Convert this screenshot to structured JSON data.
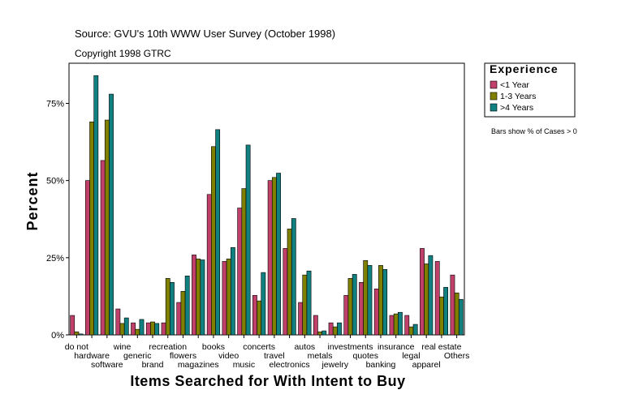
{
  "chart_data": {
    "type": "bar",
    "source": "Source: GVU's 10th WWW User Survey (October 1998)",
    "copyright": "Copyright 1998 GTRC",
    "y_label": "Percent",
    "x_label": "Items Searched for With Intent to Buy",
    "legend_title": "Experience",
    "note": "Bars show % of Cases > 0",
    "categories": [
      "do not",
      "hardware",
      "software",
      "wine",
      "generic",
      "brand",
      "recreation",
      "flowers",
      "magazines",
      "books",
      "video",
      "music",
      "concerts",
      "travel",
      "electronics",
      "autos",
      "metals",
      "jewelry",
      "investments",
      "quotes",
      "banking",
      "insurance",
      "legal",
      "apparel",
      "real estate",
      "Others"
    ],
    "series": [
      {
        "name": "<1 Year",
        "color": "#c0406a",
        "values": [
          6.3,
          50,
          56.5,
          8.4,
          3.9,
          3.9,
          3.9,
          10.5,
          25.9,
          45.5,
          23.8,
          41.1,
          12.8,
          50,
          28,
          10.5,
          6.3,
          3.9,
          12.8,
          17,
          14.9,
          6.3,
          6.3,
          28,
          23.8,
          19.4
        ]
      },
      {
        "name": "1-3 Years",
        "color": "#808000",
        "values": [
          1.0,
          69,
          69.6,
          3.7,
          1.8,
          4.2,
          18.3,
          14.1,
          24.6,
          61,
          24.6,
          47.4,
          11,
          51,
          34.3,
          19.4,
          1.0,
          2.6,
          18.3,
          24.1,
          22.5,
          6.8,
          2.6,
          23,
          12.3,
          13.6
        ]
      },
      {
        "name": ">4 Years",
        "color": "#108080",
        "values": [
          0.3,
          84,
          78,
          5.5,
          5,
          3.7,
          17,
          19.1,
          24.3,
          66.5,
          28.3,
          61.5,
          20.2,
          52.4,
          37.7,
          20.7,
          1.3,
          3.9,
          19.6,
          22.5,
          21.2,
          7.3,
          3.4,
          25.7,
          15.4,
          11.5
        ]
      }
    ],
    "ylim": [
      0,
      88
    ],
    "yticks": [
      {
        "value": 0,
        "label": "0%"
      },
      {
        "value": 25,
        "label": "25%"
      },
      {
        "value": 50,
        "label": "50%"
      },
      {
        "value": 75,
        "label": "75%"
      }
    ],
    "grid": false,
    "legend": "right"
  }
}
